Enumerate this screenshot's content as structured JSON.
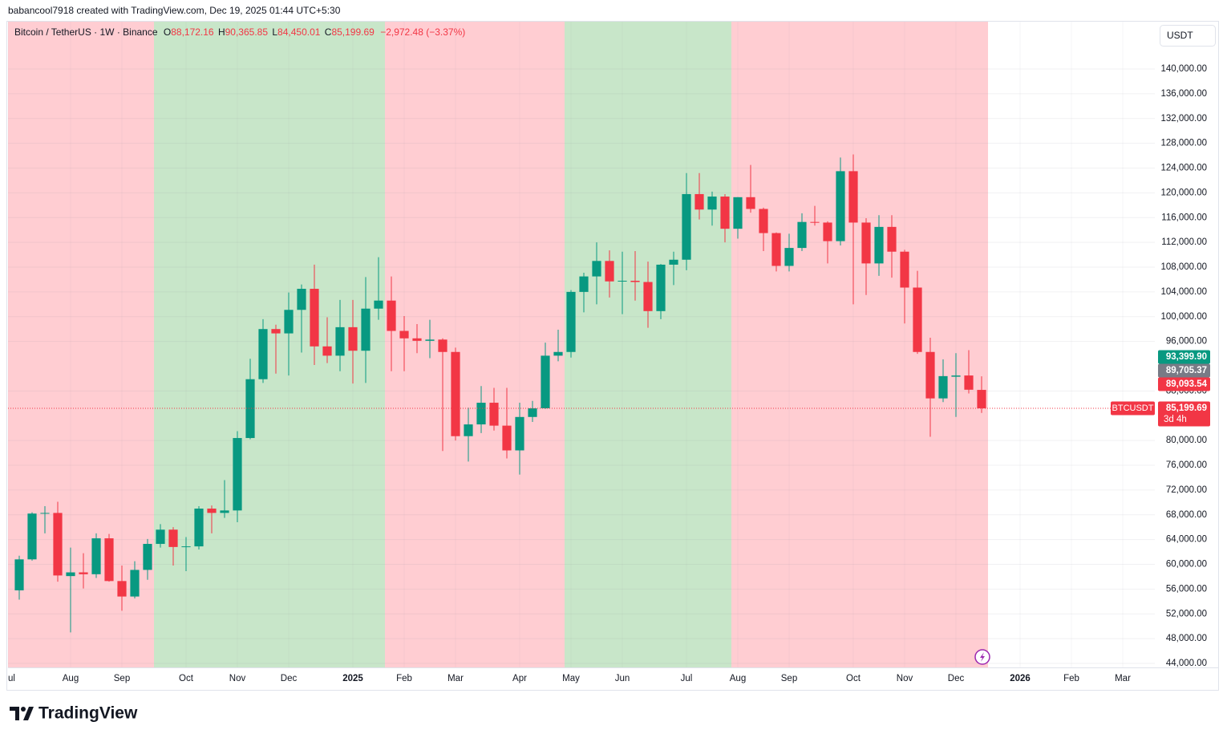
{
  "header": {
    "credit": "babancool7918 created with TradingView.com, Dec 19, 2025 01:44 UTC+5:30"
  },
  "chart_data": {
    "type": "candlestick",
    "title": "Bitcoin / TetherUS · 1W · Binance",
    "ohlc_legend": [
      {
        "key": "O",
        "value": "88,172.16"
      },
      {
        "key": "H",
        "value": "90,365.85"
      },
      {
        "key": "L",
        "value": "84,450.01"
      },
      {
        "key": "C",
        "value": "85,199.69"
      }
    ],
    "change": "−2,972.48 (−3.37%)",
    "currency": "USDT",
    "up_color": "#089981",
    "down_color": "#f23645",
    "open": [
      55800,
      60800,
      68200,
      68300,
      58100,
      58700,
      58400,
      64200,
      57300,
      54800,
      59100,
      63300,
      65600,
      62800,
      62900,
      69000,
      68300,
      68700,
      80400,
      89900,
      98000,
      97300,
      101100,
      104500,
      95200,
      93700,
      98300,
      94500,
      101300,
      102600,
      97700,
      96500,
      96100,
      96300,
      94300,
      80700,
      82600,
      86100,
      82400,
      78400,
      83800,
      85200,
      93700,
      94300,
      104000,
      106500,
      109000,
      105700,
      105800,
      105600,
      100900,
      108400,
      109200,
      119800,
      117300,
      119400,
      114200,
      119300,
      117400,
      113500,
      108200,
      111100,
      115300,
      115200,
      112200,
      123500,
      115200,
      108600,
      114500,
      110500,
      104700,
      94300,
      86800,
      90300,
      90500,
      88172.16
    ],
    "high": [
      61400,
      68400,
      69400,
      70100,
      62700,
      61800,
      65000,
      64900,
      59800,
      60500,
      64100,
      66500,
      66000,
      64400,
      69400,
      69500,
      73600,
      81500,
      93200,
      99600,
      98700,
      103900,
      105200,
      108400,
      99900,
      102700,
      102700,
      106400,
      109600,
      106500,
      100100,
      98800,
      99500,
      96500,
      95000,
      85300,
      88800,
      88500,
      88500,
      86100,
      86400,
      95800,
      97900,
      104300,
      107100,
      112000,
      110700,
      110500,
      110600,
      108900,
      108500,
      110500,
      123200,
      123200,
      120200,
      119800,
      119300,
      124500,
      117600,
      113600,
      113400,
      116700,
      117900,
      115400,
      125700,
      126200,
      115900,
      116400,
      116400,
      110800,
      107400,
      96600,
      93100,
      94100,
      94600,
      90365.85
    ],
    "low": [
      54300,
      60600,
      65000,
      57200,
      49000,
      56100,
      57800,
      57200,
      52500,
      54500,
      57500,
      62700,
      59800,
      58900,
      62400,
      65000,
      67500,
      66800,
      80200,
      89300,
      90800,
      90500,
      94200,
      92200,
      92500,
      91200,
      89200,
      89300,
      99500,
      91200,
      91200,
      94100,
      93300,
      78300,
      80000,
      76600,
      81200,
      81600,
      77100,
      74500,
      83000,
      85100,
      92800,
      93400,
      100700,
      102000,
      103100,
      100400,
      102600,
      98200,
      99600,
      105100,
      107500,
      115700,
      114700,
      112000,
      112600,
      116800,
      110600,
      107300,
      107300,
      110600,
      114700,
      108600,
      111500,
      102000,
      103500,
      106600,
      106300,
      98900,
      94000,
      80600,
      86200,
      83800,
      87600,
      84450.01
    ],
    "close": [
      60800,
      68200,
      68300,
      58200,
      58700,
      58400,
      64200,
      57300,
      54800,
      59100,
      63300,
      65600,
      62800,
      62900,
      69000,
      68300,
      68700,
      80400,
      89900,
      98000,
      97300,
      101100,
      104500,
      95200,
      93700,
      98300,
      94500,
      101300,
      102600,
      97700,
      96500,
      96100,
      96300,
      94300,
      80700,
      82600,
      86100,
      82400,
      78400,
      83800,
      85200,
      93700,
      94300,
      104000,
      106500,
      109000,
      105700,
      105800,
      105600,
      100900,
      108400,
      109200,
      119800,
      117300,
      119400,
      114200,
      119300,
      117400,
      113500,
      108200,
      111100,
      115300,
      115200,
      112200,
      123500,
      115200,
      108600,
      114500,
      110500,
      104700,
      94300,
      86800,
      90400,
      90500,
      88200,
      85199.69
    ],
    "xlim": [
      -0.875,
      88.5
    ],
    "xticks": [
      {
        "value": -0.875,
        "label": "ul"
      },
      {
        "value": 4,
        "label": "Aug"
      },
      {
        "value": 8,
        "label": "Sep"
      },
      {
        "value": 13,
        "label": "Oct"
      },
      {
        "value": 17,
        "label": "Nov"
      },
      {
        "value": 21,
        "label": "Dec"
      },
      {
        "value": 26,
        "label": "2025",
        "bold": true
      },
      {
        "value": 30,
        "label": "Feb"
      },
      {
        "value": 34,
        "label": "Mar"
      },
      {
        "value": 39,
        "label": "Apr"
      },
      {
        "value": 43,
        "label": "May"
      },
      {
        "value": 47,
        "label": "Jun"
      },
      {
        "value": 52,
        "label": "Jul"
      },
      {
        "value": 56,
        "label": "Aug"
      },
      {
        "value": 60,
        "label": "Sep"
      },
      {
        "value": 65,
        "label": "Oct"
      },
      {
        "value": 69,
        "label": "Nov"
      },
      {
        "value": 73,
        "label": "Dec"
      },
      {
        "value": 78,
        "label": "2026",
        "bold": true
      },
      {
        "value": 82,
        "label": "Feb"
      },
      {
        "value": 86,
        "label": "Mar"
      }
    ],
    "ylim": [
      43350,
      147650
    ],
    "yticks": [
      {
        "value": 44000,
        "label": "44,000.00"
      },
      {
        "value": 48000,
        "label": "48,000.00"
      },
      {
        "value": 52000,
        "label": "52,000.00"
      },
      {
        "value": 56000,
        "label": "56,000.00"
      },
      {
        "value": 60000,
        "label": "60,000.00"
      },
      {
        "value": 64000,
        "label": "64,000.00"
      },
      {
        "value": 68000,
        "label": "68,000.00"
      },
      {
        "value": 72000,
        "label": "72,000.00"
      },
      {
        "value": 76000,
        "label": "76,000.00"
      },
      {
        "value": 80000,
        "label": "80,000.00"
      },
      {
        "value": 88000,
        "label": "88,000.00"
      },
      {
        "value": 96000,
        "label": "96,000.00"
      },
      {
        "value": 100000,
        "label": "100,000.00"
      },
      {
        "value": 104000,
        "label": "104,000.00"
      },
      {
        "value": 108000,
        "label": "108,000.00"
      },
      {
        "value": 112000,
        "label": "112,000.00"
      },
      {
        "value": 116000,
        "label": "116,000.00"
      },
      {
        "value": 120000,
        "label": "120,000.00"
      },
      {
        "value": 124000,
        "label": "124,000.00"
      },
      {
        "value": 128000,
        "label": "128,000.00"
      },
      {
        "value": 132000,
        "label": "132,000.00"
      },
      {
        "value": 136000,
        "label": "136,000.00"
      },
      {
        "value": 140000,
        "label": "140,000.00"
      }
    ],
    "grid": true,
    "regions": [
      {
        "from": 0,
        "to": 10,
        "color": "#ffcdd2"
      },
      {
        "from": 11,
        "to": 28,
        "color": "#c8e6c9"
      },
      {
        "from": 29,
        "to": 42,
        "color": "#ffcdd2"
      },
      {
        "from": 43,
        "to": 55,
        "color": "#c8e6c9"
      },
      {
        "from": 56,
        "to": 75,
        "color": "#ffcdd2"
      }
    ],
    "price_labels": [
      {
        "value": 93399.9,
        "label": "93,399.90",
        "color": "#089981"
      },
      {
        "value": 89705.37,
        "label": "89,705.37",
        "color": "#787b86"
      },
      {
        "value": 89093.54,
        "label": "89,093.54",
        "color": "#f23645"
      }
    ],
    "last_price": {
      "value": 85199.69,
      "label": "85,199.69",
      "countdown": "3d 4h",
      "symbol": "BTCUSDT",
      "color": "#f23645"
    }
  },
  "footer": {
    "logo": "TradingView"
  }
}
